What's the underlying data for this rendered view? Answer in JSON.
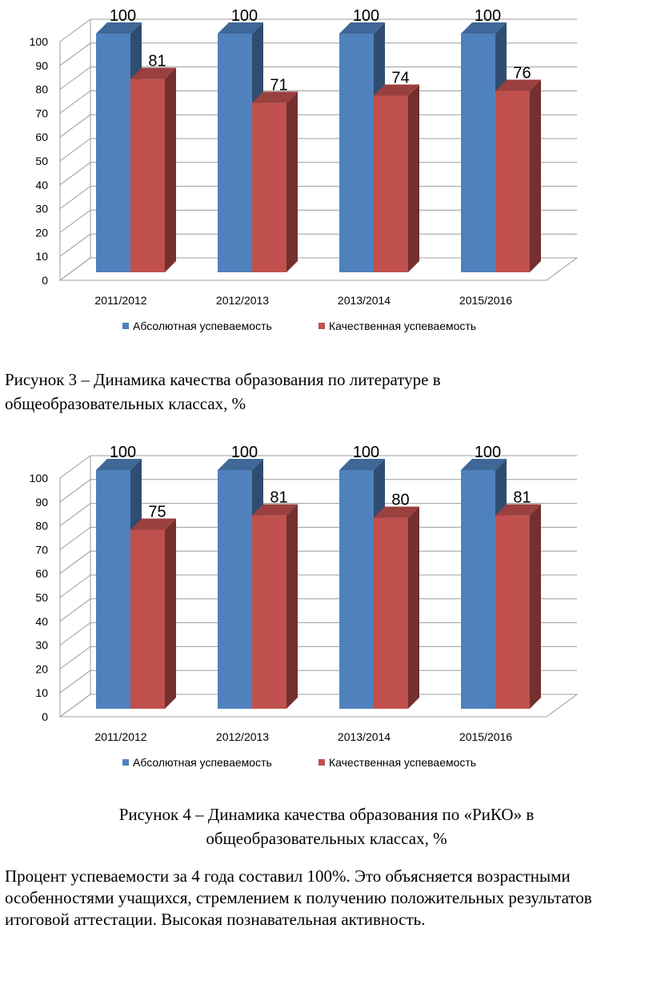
{
  "chart_data": [
    {
      "type": "bar",
      "categories": [
        "2011/2012",
        "2012/2013",
        "2013/2014",
        "2015/2016"
      ],
      "series": [
        {
          "name": "Абсолютная успеваемость",
          "values": [
            100,
            100,
            100,
            100
          ],
          "color": "#4f81bd"
        },
        {
          "name": "Качественная успеваемость",
          "values": [
            81,
            71,
            74,
            76
          ],
          "color": "#c0504d"
        }
      ],
      "ylim": [
        0,
        100
      ],
      "yticks": [
        0,
        10,
        20,
        30,
        40,
        50,
        60,
        70,
        80,
        90,
        100
      ],
      "grid": true,
      "legend": "bottom"
    },
    {
      "type": "bar",
      "categories": [
        "2011/2012",
        "2012/2013",
        "2013/2014",
        "2015/2016"
      ],
      "series": [
        {
          "name": "Абсолютная успеваемость",
          "values": [
            100,
            100,
            100,
            100
          ],
          "color": "#4f81bd"
        },
        {
          "name": "Качественная успеваемость",
          "values": [
            75,
            81,
            80,
            81
          ],
          "color": "#c0504d"
        }
      ],
      "ylim": [
        0,
        100
      ],
      "yticks": [
        0,
        10,
        20,
        30,
        40,
        50,
        60,
        70,
        80,
        90,
        100
      ],
      "grid": true,
      "legend": "bottom"
    }
  ],
  "captions": {
    "figure3_line1": "Рисунок 3 – Динамика качества образования по литературе в",
    "figure3_line2": "общеобразовательных классах, %",
    "figure4_line1": "Рисунок 4 – Динамика качества образования по «РиКО» в",
    "figure4_line2": "общеобразовательных классах, %"
  },
  "body_text": "Процент успеваемости за 4 года составил 100%. Это объясняется возрастными особенностями учащихся, стремлением к получению положительных результатов итоговой аттестации.  Высокая познавательная активность."
}
